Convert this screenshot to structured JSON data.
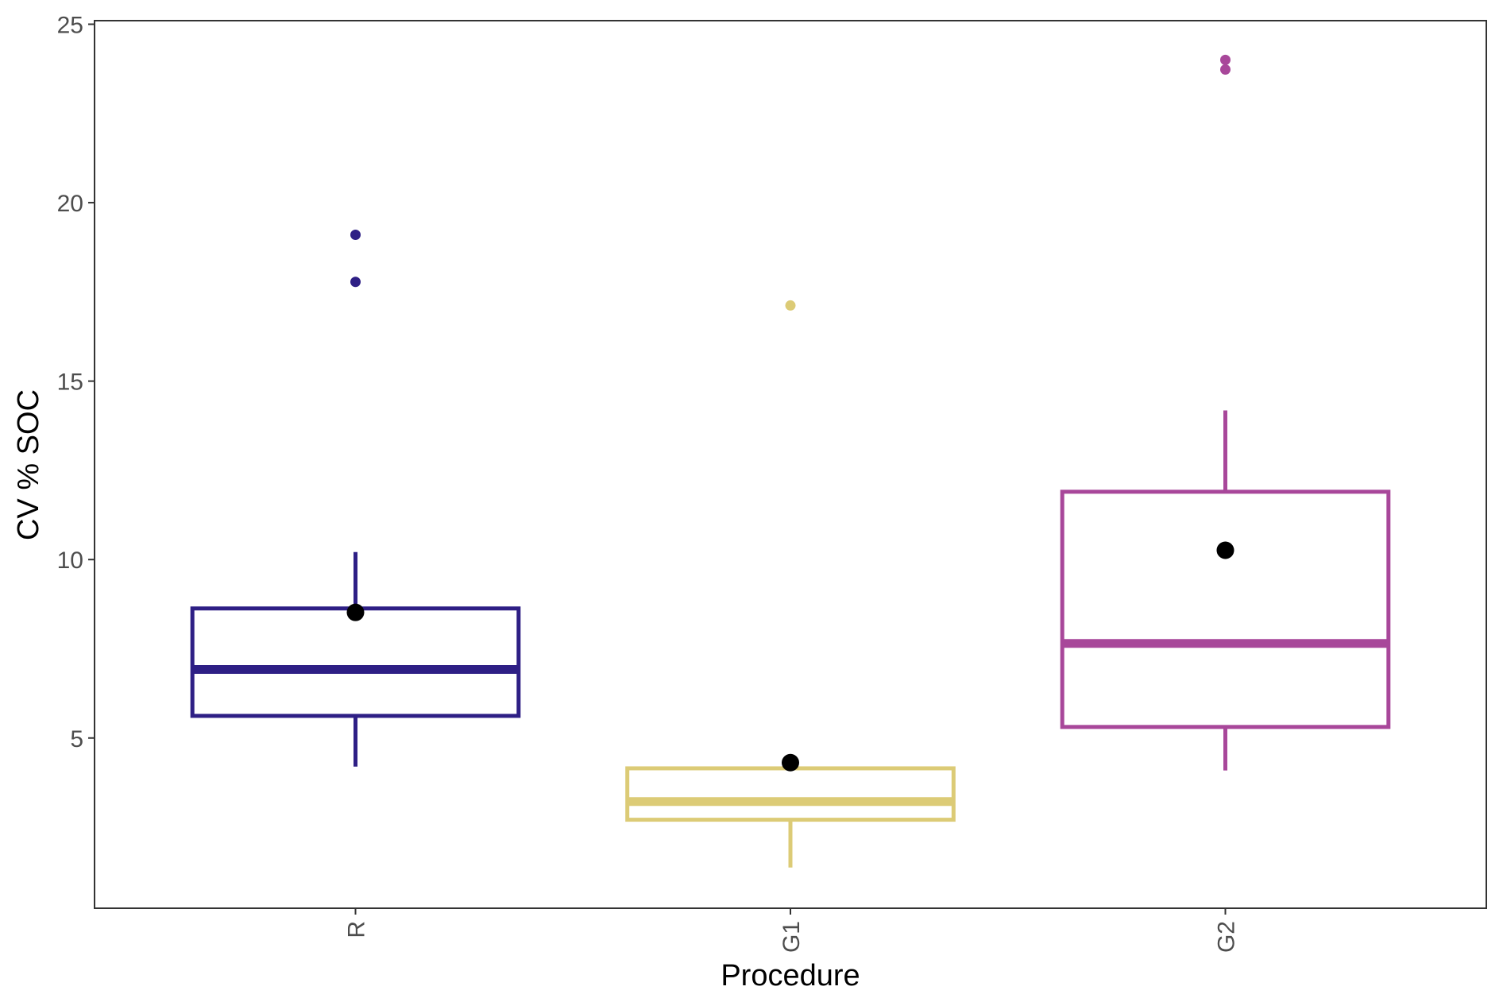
{
  "chart_data": {
    "type": "boxplot",
    "title": "",
    "xlabel": "Procedure",
    "ylabel": "CV % SOC",
    "ylim": [
      0.23,
      25.1
    ],
    "yticks": [
      5,
      10,
      15,
      20,
      25
    ],
    "ytick_labels": [
      "5",
      "10",
      "15",
      "20",
      "25"
    ],
    "categories": [
      "R",
      "G1",
      "G2"
    ],
    "grid": false,
    "legend": "none",
    "series": [
      {
        "name": "R",
        "color": "#2e1f85",
        "whisker_low": 4.2,
        "q1": 5.62,
        "median": 6.92,
        "q3": 8.63,
        "whisker_high": 10.21,
        "mean": 8.52,
        "outliers": [
          19.1,
          17.78
        ]
      },
      {
        "name": "G1",
        "color": "#dccb76",
        "whisker_low": 1.37,
        "q1": 2.71,
        "median": 3.22,
        "q3": 4.15,
        "whisker_high": 4.15,
        "mean": 4.31,
        "outliers": [
          17.12
        ]
      },
      {
        "name": "G2",
        "color": "#a8479a",
        "whisker_low": 4.09,
        "q1": 5.31,
        "median": 7.65,
        "q3": 11.9,
        "whisker_high": 14.18,
        "mean": 10.26,
        "outliers": [
          24.0,
          23.73
        ]
      }
    ],
    "mean_marker_color": "#000000"
  }
}
